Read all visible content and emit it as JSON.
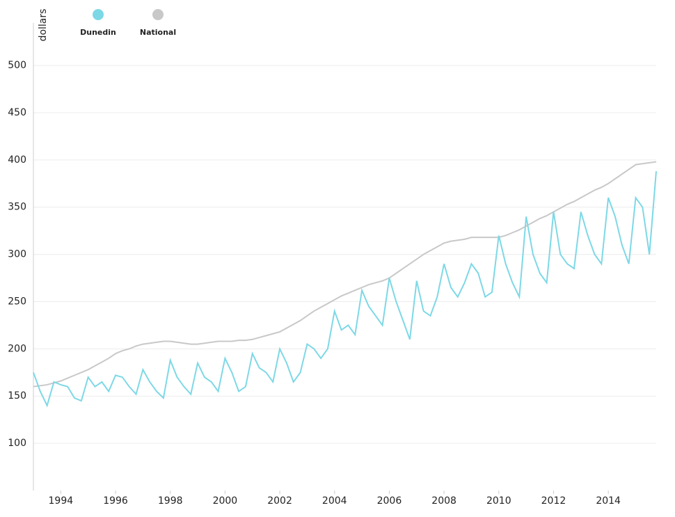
{
  "chart_data": {
    "type": "line",
    "y_label": "dollars",
    "x": [
      1993,
      1993.25,
      1993.5,
      1993.75,
      1994,
      1994.25,
      1994.5,
      1994.75,
      1995,
      1995.25,
      1995.5,
      1995.75,
      1996,
      1996.25,
      1996.5,
      1996.75,
      1997,
      1997.25,
      1997.5,
      1997.75,
      1998,
      1998.25,
      1998.5,
      1998.75,
      1999,
      1999.25,
      1999.5,
      1999.75,
      2000,
      2000.25,
      2000.5,
      2000.75,
      2001,
      2001.25,
      2001.5,
      2001.75,
      2002,
      2002.25,
      2002.5,
      2002.75,
      2003,
      2003.25,
      2003.5,
      2003.75,
      2004,
      2004.25,
      2004.5,
      2004.75,
      2005,
      2005.25,
      2005.5,
      2005.75,
      2006,
      2006.25,
      2006.5,
      2006.75,
      2007,
      2007.25,
      2007.5,
      2007.75,
      2008,
      2008.25,
      2008.5,
      2008.75,
      2009,
      2009.25,
      2009.5,
      2009.75,
      2010,
      2010.25,
      2010.5,
      2010.75,
      2011,
      2011.25,
      2011.5,
      2011.75,
      2012,
      2012.25,
      2012.5,
      2012.75,
      2013,
      2013.25,
      2013.5,
      2013.75,
      2014,
      2014.25,
      2014.5,
      2014.75,
      2015,
      2015.25,
      2015.5,
      2015.75
    ],
    "series": [
      {
        "name": "Dunedin",
        "color": "#7dd8e6",
        "values": [
          175,
          155,
          140,
          165,
          162,
          160,
          148,
          145,
          170,
          160,
          165,
          155,
          172,
          170,
          160,
          152,
          178,
          165,
          155,
          148,
          188,
          170,
          160,
          152,
          185,
          170,
          165,
          155,
          190,
          175,
          155,
          160,
          195,
          180,
          175,
          165,
          200,
          185,
          165,
          175,
          205,
          200,
          190,
          200,
          240,
          220,
          225,
          215,
          262,
          245,
          235,
          225,
          275,
          250,
          230,
          210,
          272,
          240,
          235,
          255,
          290,
          265,
          255,
          270,
          290,
          280,
          255,
          260,
          320,
          290,
          270,
          255,
          340,
          300,
          280,
          270,
          345,
          300,
          290,
          285,
          345,
          320,
          300,
          290,
          360,
          340,
          310,
          290,
          360,
          350,
          300,
          388
        ]
      },
      {
        "name": "National",
        "color": "#c8c8c8",
        "values": [
          160,
          161,
          162,
          164,
          166,
          169,
          172,
          175,
          178,
          182,
          186,
          190,
          195,
          198,
          200,
          203,
          205,
          206,
          207,
          208,
          208,
          207,
          206,
          205,
          205,
          206,
          207,
          208,
          208,
          208,
          209,
          209,
          210,
          212,
          214,
          216,
          218,
          222,
          226,
          230,
          235,
          240,
          244,
          248,
          252,
          256,
          259,
          262,
          265,
          268,
          270,
          272,
          275,
          280,
          285,
          290,
          295,
          300,
          304,
          308,
          312,
          314,
          315,
          316,
          318,
          318,
          318,
          318,
          318,
          320,
          323,
          326,
          330,
          334,
          338,
          341,
          345,
          349,
          353,
          356,
          360,
          364,
          368,
          371,
          375,
          380,
          385,
          390,
          395,
          396,
          397,
          398
        ]
      }
    ],
    "xlim": [
      1993,
      2015.75
    ],
    "xticks": [
      1994,
      1996,
      1998,
      2000,
      2002,
      2004,
      2006,
      2008,
      2010,
      2012,
      2014
    ],
    "ylim": [
      50,
      545
    ],
    "yticks": [
      100,
      150,
      200,
      250,
      300,
      350,
      400,
      450,
      500
    ],
    "grid": true
  }
}
